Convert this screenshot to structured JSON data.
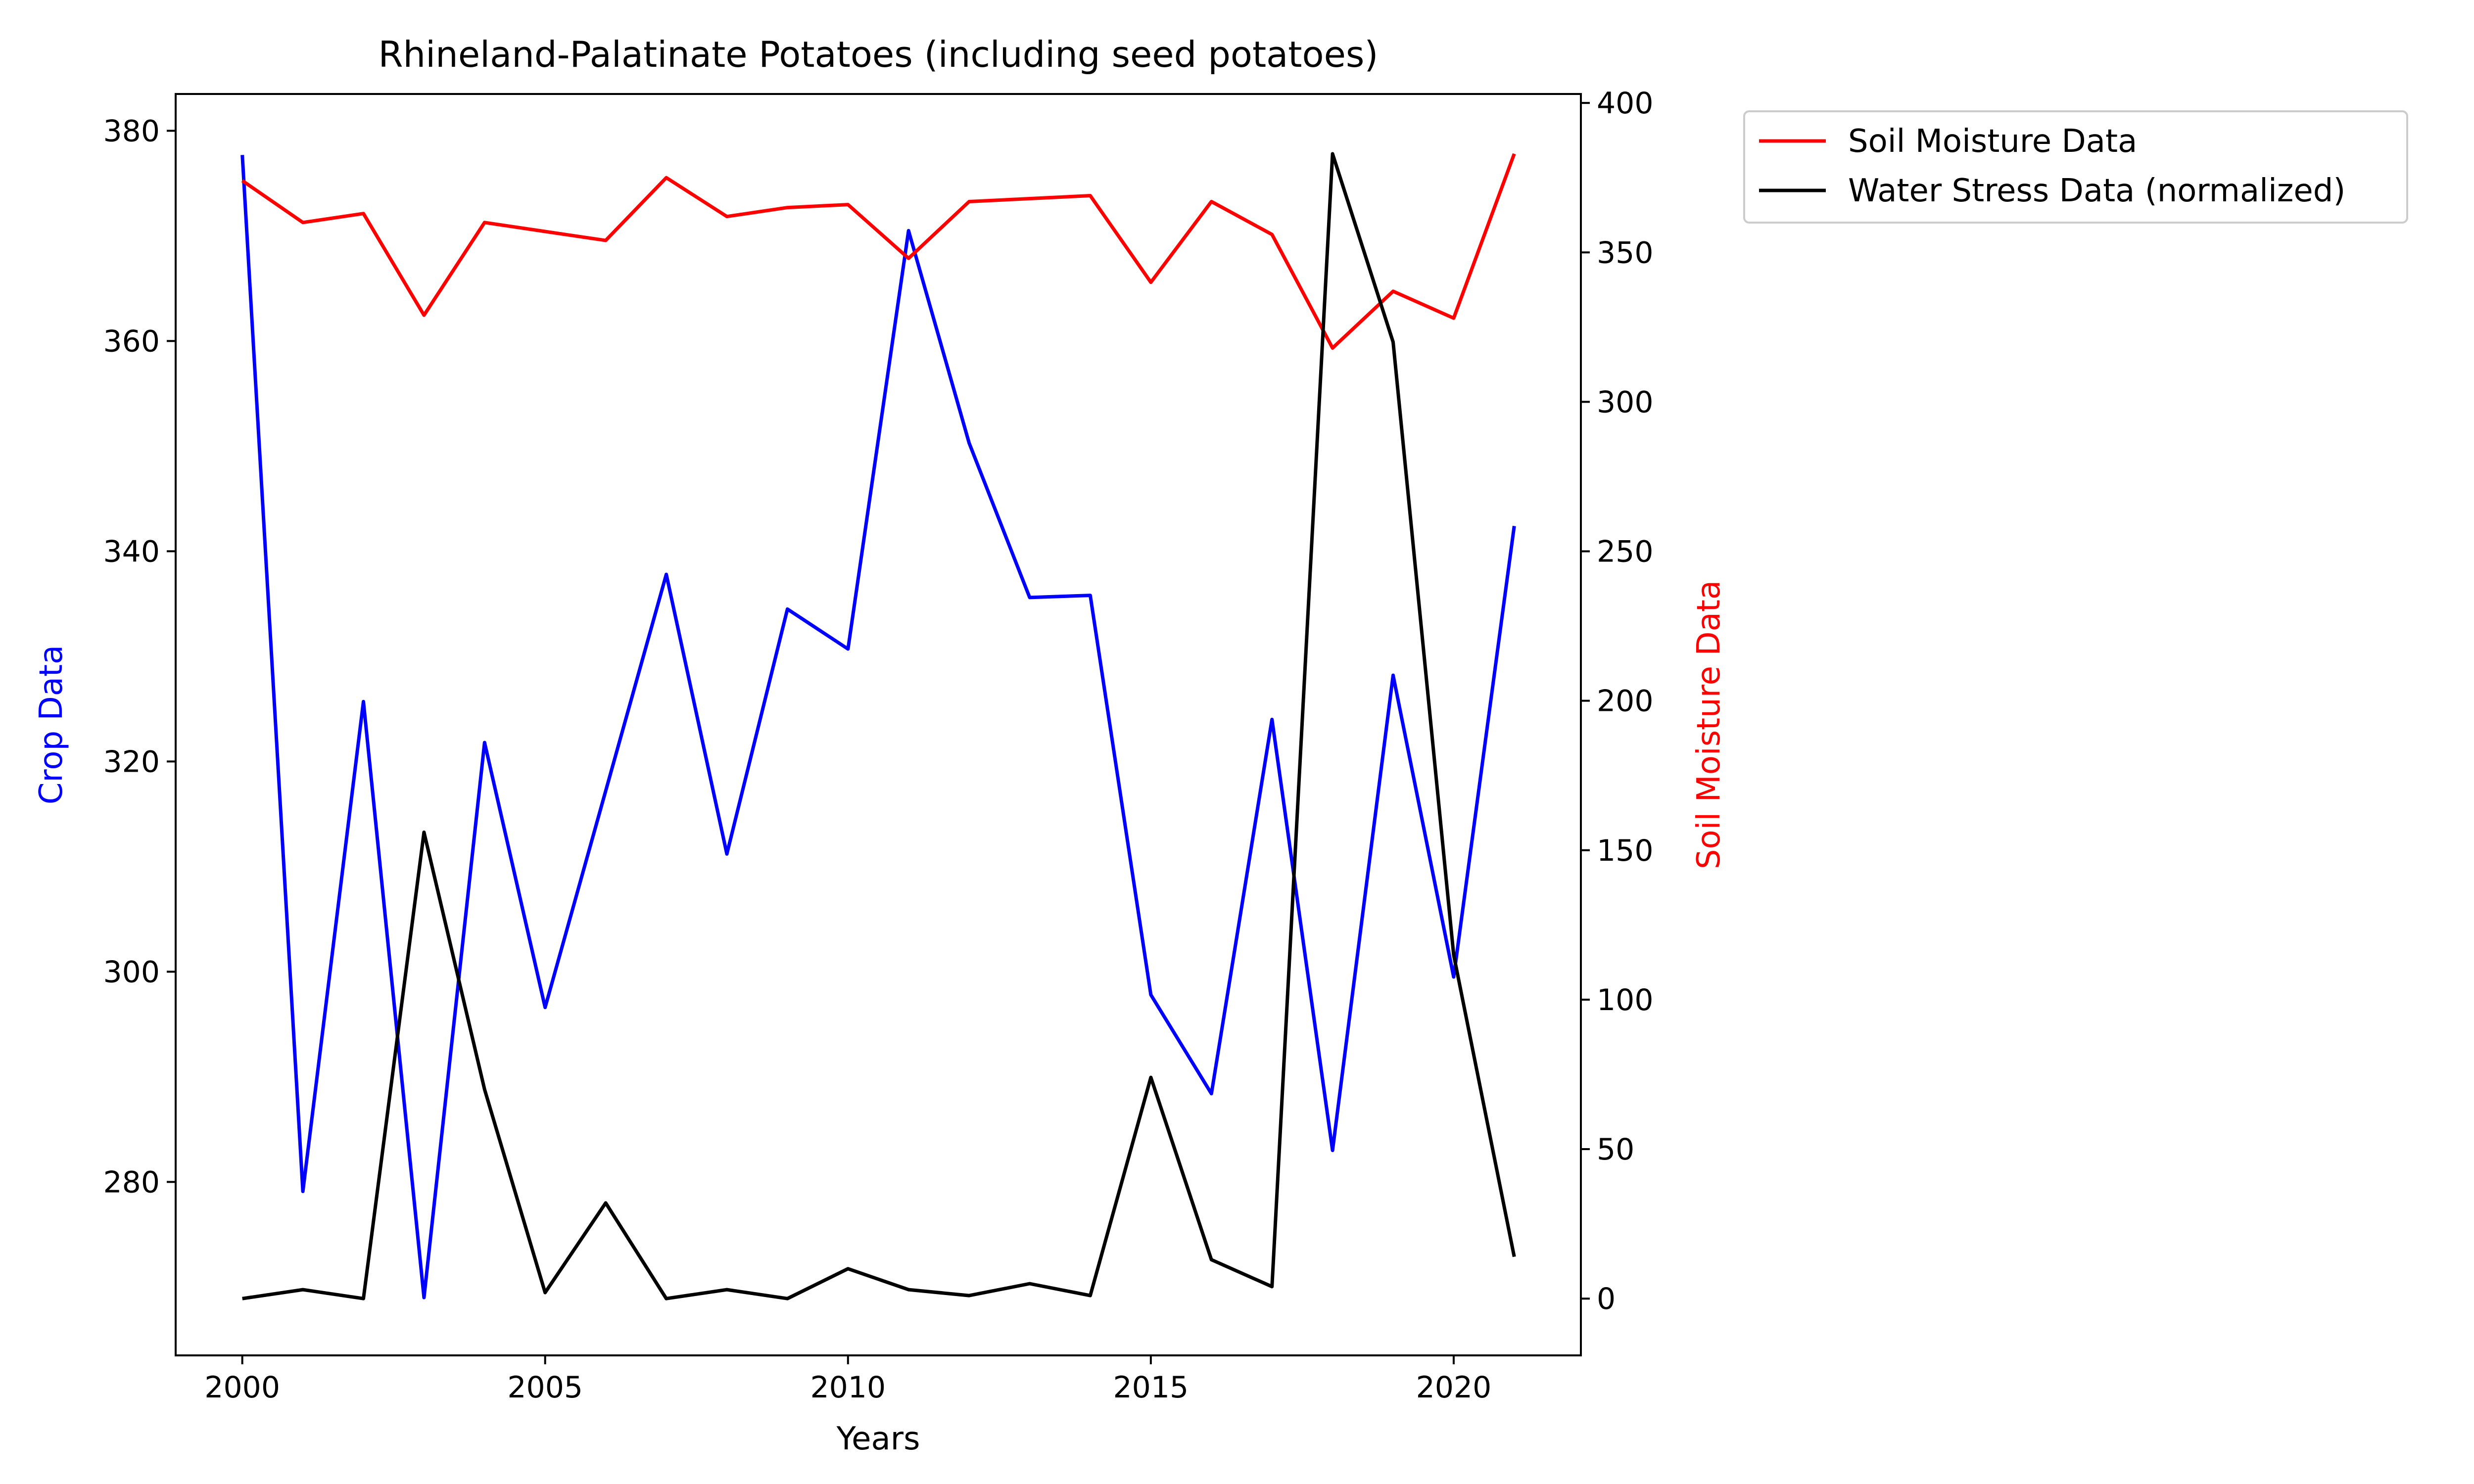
{
  "chart_data": {
    "type": "line",
    "title": "Rhineland-Palatinate Potatoes (including seed potatoes)",
    "xlabel": "Years",
    "ylabel_left": "Crop Data",
    "ylabel_right": "Soil Moisture Data",
    "x": [
      2000,
      2001,
      2002,
      2003,
      2004,
      2005,
      2006,
      2007,
      2008,
      2009,
      2010,
      2011,
      2012,
      2013,
      2014,
      2015,
      2016,
      2017,
      2018,
      2019,
      2020,
      2021
    ],
    "xlim": [
      1998.9,
      2022.1
    ],
    "ylim_left": [
      263.5,
      383.5
    ],
    "ylim_right": [
      -19,
      403
    ],
    "x_ticks": [
      2000,
      2005,
      2010,
      2015,
      2020
    ],
    "y_ticks_left": [
      280,
      300,
      320,
      340,
      360,
      380
    ],
    "y_ticks_right": [
      0,
      50,
      100,
      150,
      200,
      250,
      300,
      350,
      400
    ],
    "grid": false,
    "legend_position": "outside-top-right",
    "series": [
      {
        "name": "Crop Data",
        "axis": "left",
        "color": "#0000ff",
        "in_legend": false,
        "values": [
          377.7,
          279.1,
          325.7,
          269.0,
          321.8,
          296.6,
          317.2,
          337.8,
          311.2,
          334.5,
          330.7,
          370.5,
          350.3,
          335.6,
          335.8,
          297.8,
          288.4,
          324.0,
          283.0,
          328.2,
          299.5,
          342.4
        ]
      },
      {
        "name": "Soil Moisture Data",
        "axis": "right",
        "color": "#ff0000",
        "in_legend": true,
        "values": [
          374,
          360,
          363,
          329,
          360,
          357,
          354,
          375,
          362,
          365,
          366,
          348,
          367,
          368,
          369,
          340,
          367,
          356,
          318,
          337,
          328,
          383
        ]
      },
      {
        "name": "Water Stress Data (normalized)",
        "axis": "right",
        "color": "#000000",
        "in_legend": true,
        "values": [
          0,
          3,
          0,
          156,
          70,
          2,
          32,
          0,
          3,
          0,
          10,
          3,
          1,
          5,
          1,
          74,
          13,
          4,
          383,
          320,
          115,
          14
        ]
      }
    ]
  }
}
